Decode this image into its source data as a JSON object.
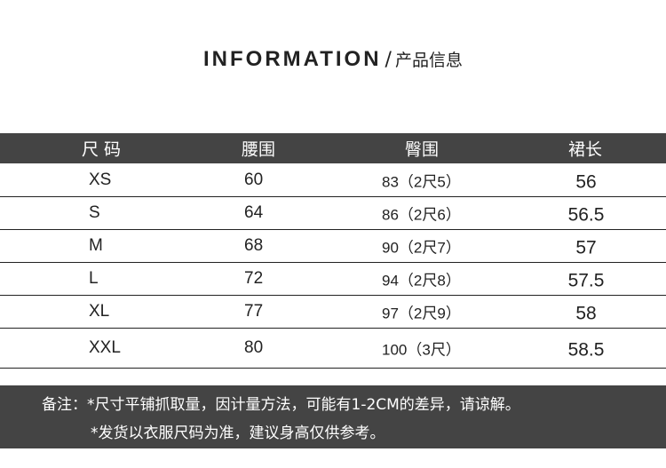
{
  "title": {
    "en": "INFORMATION",
    "separator": "/",
    "cn": "产品信息"
  },
  "table": {
    "headers": [
      "尺 码",
      "腰围",
      "臀围",
      "裙长"
    ],
    "rows": [
      [
        "XS",
        "60",
        "83（2尺5）",
        "56"
      ],
      [
        "S",
        "64",
        "86（2尺6）",
        "56.5"
      ],
      [
        "M",
        "68",
        "90（2尺7）",
        "57"
      ],
      [
        "L",
        "72",
        "94（2尺8）",
        "57.5"
      ],
      [
        "XL",
        "77",
        "97（2尺9）",
        "58"
      ],
      [
        "XXL",
        "80",
        "100（3尺）",
        "58.5"
      ]
    ]
  },
  "notes": {
    "line1": "备注：*尺寸平铺抓取量，因计量方法，可能有1-2CM的差异，请谅解。",
    "line2": "*发货以衣服尺码为准，建议身高仅供参考。"
  },
  "colors": {
    "header_bg": "#444444",
    "text": "#222222"
  }
}
